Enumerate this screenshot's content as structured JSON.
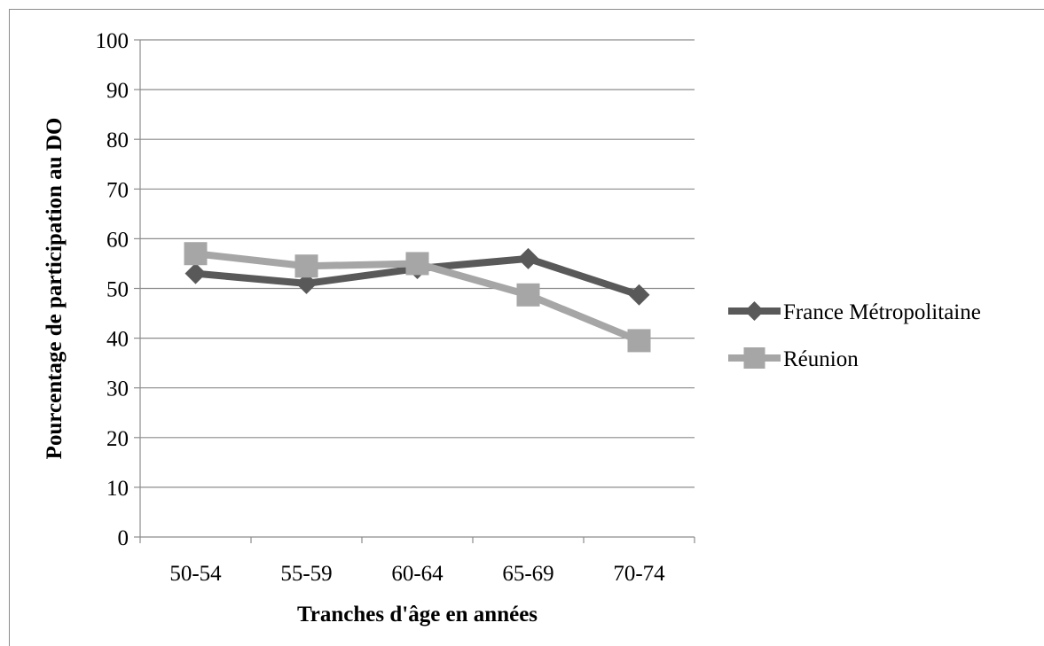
{
  "chart_data": {
    "type": "line",
    "title": "",
    "xlabel": "Tranches d'âge en années",
    "ylabel": "Pourcentage de participation au DO",
    "categories": [
      "50-54",
      "55-59",
      "60-64",
      "65-69",
      "70-74"
    ],
    "ylim": [
      0,
      100
    ],
    "yticks": [
      0,
      10,
      20,
      30,
      40,
      50,
      60,
      70,
      80,
      90,
      100
    ],
    "grid": true,
    "legend_position": "right",
    "series": [
      {
        "name": "France Métropolitaine",
        "values": [
          53,
          51,
          54,
          56,
          48.7
        ],
        "color": "#595959",
        "marker": "diamond"
      },
      {
        "name": "Réunion",
        "values": [
          57,
          54.5,
          55,
          48.7,
          39.5
        ],
        "color": "#a6a6a6",
        "marker": "square"
      }
    ]
  }
}
